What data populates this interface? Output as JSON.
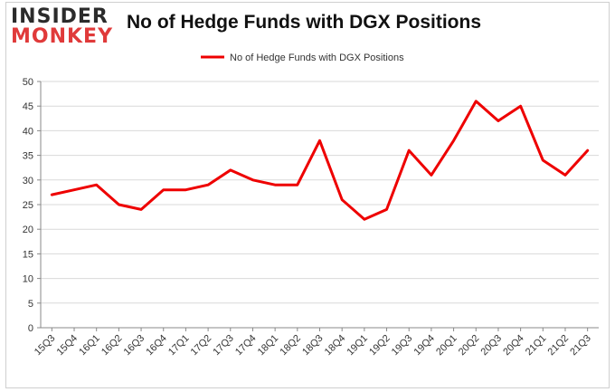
{
  "logo": {
    "line1": "INSIDER",
    "line2": "MONKEY"
  },
  "chart_data": {
    "type": "line",
    "title": "No of Hedge Funds with DGX Positions",
    "xlabel": "",
    "ylabel": "",
    "ylim": [
      0,
      50
    ],
    "yticks": [
      0,
      5,
      10,
      15,
      20,
      25,
      30,
      35,
      40,
      45,
      50
    ],
    "grid": true,
    "legend_position": "top-center",
    "categories": [
      "15Q3",
      "15Q4",
      "16Q1",
      "16Q2",
      "16Q3",
      "16Q4",
      "17Q1",
      "17Q2",
      "17Q3",
      "17Q4",
      "18Q1",
      "18Q2",
      "18Q3",
      "18Q4",
      "19Q1",
      "19Q2",
      "19Q3",
      "19Q4",
      "20Q1",
      "20Q2",
      "20Q3",
      "20Q4",
      "21Q1",
      "21Q2",
      "21Q3"
    ],
    "series": [
      {
        "name": "No of Hedge Funds with DGX Positions",
        "color": "#ee0000",
        "values": [
          27,
          28,
          29,
          25,
          24,
          28,
          28,
          29,
          32,
          30,
          29,
          29,
          38,
          26,
          22,
          24,
          36,
          31,
          38,
          46,
          42,
          45,
          34,
          31,
          36
        ]
      }
    ]
  }
}
